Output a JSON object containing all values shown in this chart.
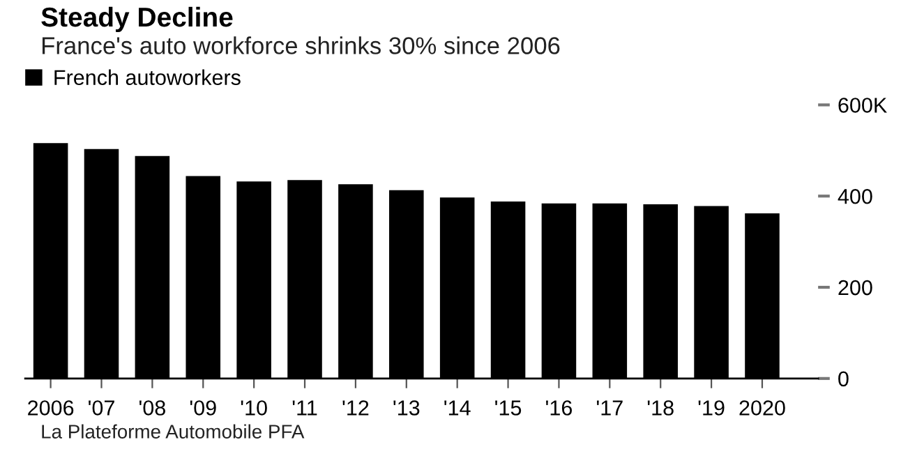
{
  "chart_data": {
    "type": "bar",
    "title": "Steady Decline",
    "subtitle": "France's auto workforce shrinks 30% since 2006",
    "categories": [
      "2006",
      "'07",
      "'08",
      "'09",
      "'10",
      "'11",
      "'12",
      "'13",
      "'14",
      "'15",
      "'16",
      "'17",
      "'18",
      "'19",
      "2020"
    ],
    "series": [
      {
        "name": "French autoworkers",
        "color": "#000000",
        "values": [
          516,
          503,
          488,
          444,
          432,
          435,
          426,
          413,
          397,
          388,
          384,
          384,
          382,
          378,
          362
        ]
      }
    ],
    "ylim": [
      0,
      600
    ],
    "yticks": [
      0,
      200,
      400,
      {
        "value": 600,
        "label": "600K"
      }
    ],
    "grid": false,
    "legend": "top left",
    "annotations": [
      "La Plateforme Automobile PFA"
    ]
  }
}
